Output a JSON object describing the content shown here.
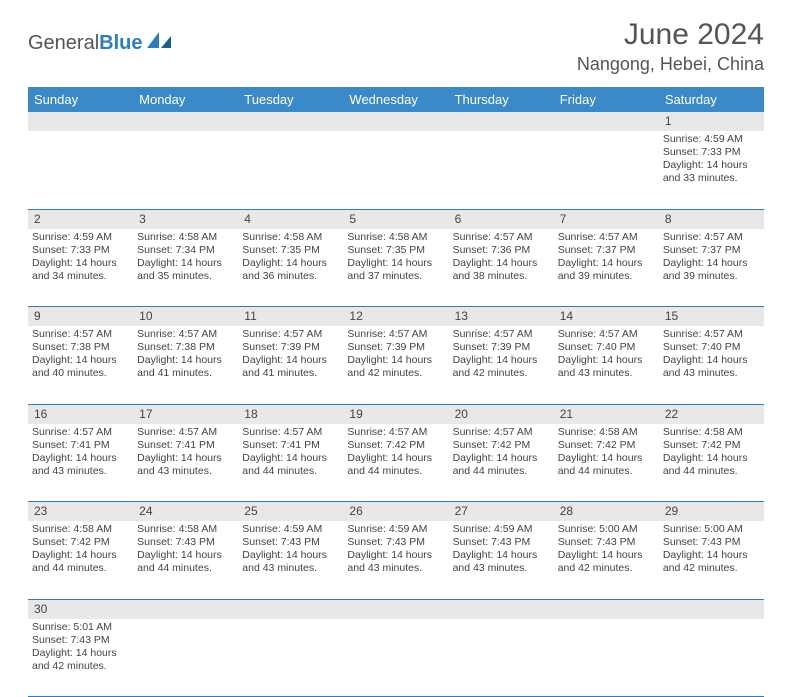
{
  "logo": {
    "part1": "General",
    "part2": "Blue"
  },
  "title": "June 2024",
  "location": "Nangong, Hebei, China",
  "colors": {
    "header_bg": "#3a89c9",
    "header_text": "#ffffff",
    "daynum_bg": "#e8e8e8",
    "row_border": "#2b7ec1",
    "logo_gray": "#555555",
    "logo_blue": "#2b7ec1",
    "body_text": "#444444"
  },
  "weekdays": [
    "Sunday",
    "Monday",
    "Tuesday",
    "Wednesday",
    "Thursday",
    "Friday",
    "Saturday"
  ],
  "weeks": [
    {
      "nums": [
        "",
        "",
        "",
        "",
        "",
        "",
        "1"
      ],
      "cells": [
        "",
        "",
        "",
        "",
        "",
        "",
        "Sunrise: 4:59 AM\nSunset: 7:33 PM\nDaylight: 14 hours and 33 minutes."
      ]
    },
    {
      "nums": [
        "2",
        "3",
        "4",
        "5",
        "6",
        "7",
        "8"
      ],
      "cells": [
        "Sunrise: 4:59 AM\nSunset: 7:33 PM\nDaylight: 14 hours and 34 minutes.",
        "Sunrise: 4:58 AM\nSunset: 7:34 PM\nDaylight: 14 hours and 35 minutes.",
        "Sunrise: 4:58 AM\nSunset: 7:35 PM\nDaylight: 14 hours and 36 minutes.",
        "Sunrise: 4:58 AM\nSunset: 7:35 PM\nDaylight: 14 hours and 37 minutes.",
        "Sunrise: 4:57 AM\nSunset: 7:36 PM\nDaylight: 14 hours and 38 minutes.",
        "Sunrise: 4:57 AM\nSunset: 7:37 PM\nDaylight: 14 hours and 39 minutes.",
        "Sunrise: 4:57 AM\nSunset: 7:37 PM\nDaylight: 14 hours and 39 minutes."
      ]
    },
    {
      "nums": [
        "9",
        "10",
        "11",
        "12",
        "13",
        "14",
        "15"
      ],
      "cells": [
        "Sunrise: 4:57 AM\nSunset: 7:38 PM\nDaylight: 14 hours and 40 minutes.",
        "Sunrise: 4:57 AM\nSunset: 7:38 PM\nDaylight: 14 hours and 41 minutes.",
        "Sunrise: 4:57 AM\nSunset: 7:39 PM\nDaylight: 14 hours and 41 minutes.",
        "Sunrise: 4:57 AM\nSunset: 7:39 PM\nDaylight: 14 hours and 42 minutes.",
        "Sunrise: 4:57 AM\nSunset: 7:39 PM\nDaylight: 14 hours and 42 minutes.",
        "Sunrise: 4:57 AM\nSunset: 7:40 PM\nDaylight: 14 hours and 43 minutes.",
        "Sunrise: 4:57 AM\nSunset: 7:40 PM\nDaylight: 14 hours and 43 minutes."
      ]
    },
    {
      "nums": [
        "16",
        "17",
        "18",
        "19",
        "20",
        "21",
        "22"
      ],
      "cells": [
        "Sunrise: 4:57 AM\nSunset: 7:41 PM\nDaylight: 14 hours and 43 minutes.",
        "Sunrise: 4:57 AM\nSunset: 7:41 PM\nDaylight: 14 hours and 43 minutes.",
        "Sunrise: 4:57 AM\nSunset: 7:41 PM\nDaylight: 14 hours and 44 minutes.",
        "Sunrise: 4:57 AM\nSunset: 7:42 PM\nDaylight: 14 hours and 44 minutes.",
        "Sunrise: 4:57 AM\nSunset: 7:42 PM\nDaylight: 14 hours and 44 minutes.",
        "Sunrise: 4:58 AM\nSunset: 7:42 PM\nDaylight: 14 hours and 44 minutes.",
        "Sunrise: 4:58 AM\nSunset: 7:42 PM\nDaylight: 14 hours and 44 minutes."
      ]
    },
    {
      "nums": [
        "23",
        "24",
        "25",
        "26",
        "27",
        "28",
        "29"
      ],
      "cells": [
        "Sunrise: 4:58 AM\nSunset: 7:42 PM\nDaylight: 14 hours and 44 minutes.",
        "Sunrise: 4:58 AM\nSunset: 7:43 PM\nDaylight: 14 hours and 44 minutes.",
        "Sunrise: 4:59 AM\nSunset: 7:43 PM\nDaylight: 14 hours and 43 minutes.",
        "Sunrise: 4:59 AM\nSunset: 7:43 PM\nDaylight: 14 hours and 43 minutes.",
        "Sunrise: 4:59 AM\nSunset: 7:43 PM\nDaylight: 14 hours and 43 minutes.",
        "Sunrise: 5:00 AM\nSunset: 7:43 PM\nDaylight: 14 hours and 42 minutes.",
        "Sunrise: 5:00 AM\nSunset: 7:43 PM\nDaylight: 14 hours and 42 minutes."
      ]
    },
    {
      "nums": [
        "30",
        "",
        "",
        "",
        "",
        "",
        ""
      ],
      "cells": [
        "Sunrise: 5:01 AM\nSunset: 7:43 PM\nDaylight: 14 hours and 42 minutes.",
        "",
        "",
        "",
        "",
        "",
        ""
      ]
    }
  ]
}
